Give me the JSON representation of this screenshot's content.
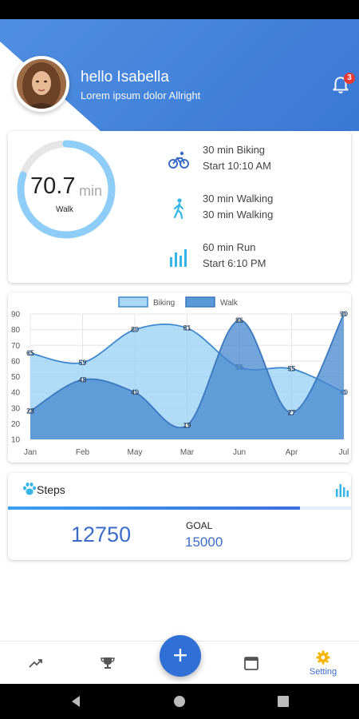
{
  "header": {
    "greeting": "hello Isabella",
    "subtitle": "Lorem ipsum dolor Allright",
    "notification_count": "3",
    "accent": "#3a78d6"
  },
  "activity": {
    "ring_value": "70.7",
    "ring_unit": "min",
    "ring_label": "Walk",
    "ring_progress": 0.8,
    "items": [
      {
        "icon": "bike-icon",
        "line1": "30 min Biking",
        "line2": "Start 10:10 AM"
      },
      {
        "icon": "walk-icon",
        "line1": "30 min Walking",
        "line2": "30 min Walking"
      },
      {
        "icon": "bar-chart-icon",
        "line1": "60 min Run",
        "line2": "Start 6:10 PM"
      }
    ]
  },
  "chart_data": {
    "type": "area",
    "categories": [
      "Jan",
      "Feb",
      "May",
      "Mar",
      "Jun",
      "Apr",
      "Jul"
    ],
    "series": [
      {
        "name": "Biking",
        "values": [
          65,
          59,
          80,
          81,
          56,
          55,
          40
        ],
        "color": "#a9d8f5"
      },
      {
        "name": "Walk",
        "values": [
          28,
          48,
          40,
          19,
          86,
          27,
          90
        ],
        "color": "#5b9ad8"
      }
    ],
    "y_ticks": [
      "90",
      "80",
      "70",
      "60",
      "50",
      "40",
      "30",
      "20",
      "10"
    ],
    "ylim": [
      10,
      90
    ],
    "legend": "top",
    "grid": true
  },
  "steps": {
    "title": "Steps",
    "value": "12750",
    "goal_label": "GOAL",
    "goal_value": "15000",
    "progress": 0.85
  },
  "nav": {
    "items": [
      {
        "icon": "trending-icon",
        "label": ""
      },
      {
        "icon": "trophy-icon",
        "label": ""
      },
      {
        "icon": "add-icon",
        "label": "+"
      },
      {
        "icon": "calendar-icon",
        "label": ""
      },
      {
        "icon": "gear-icon",
        "label": "Setting"
      }
    ]
  }
}
